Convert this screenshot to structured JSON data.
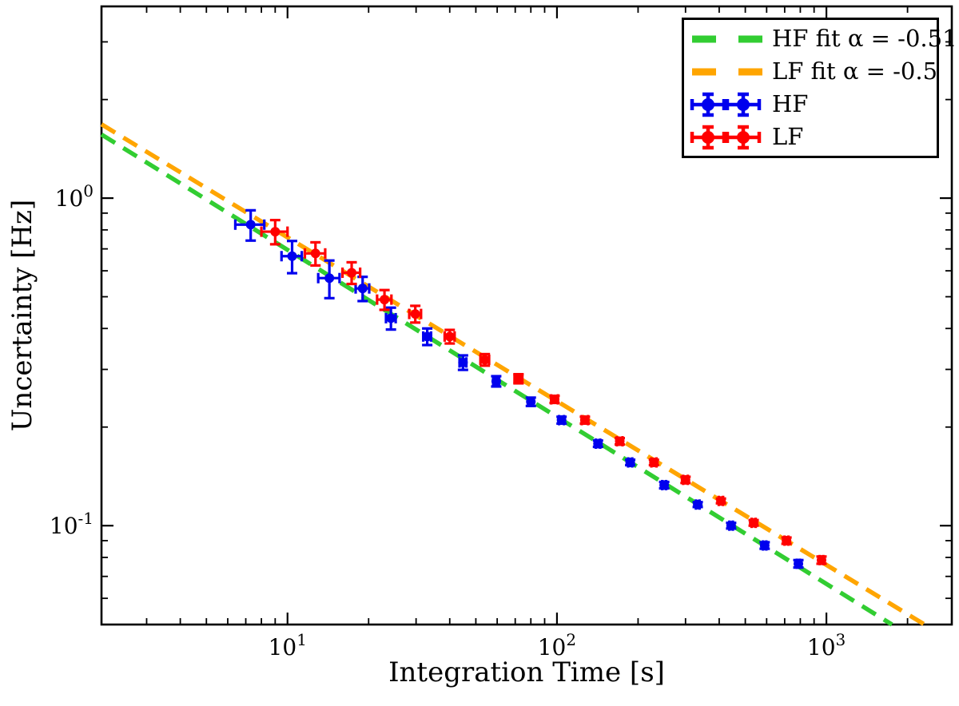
{
  "chart_data": {
    "type": "scatter",
    "title": "",
    "xlabel": "Integration Time [s]",
    "ylabel": "Uncertainty [Hz]",
    "x_scale": "log",
    "y_scale": "log",
    "xlim": [
      2.04,
      2920
    ],
    "ylim": [
      0.0499,
      3.85
    ],
    "x_major_ticks": [
      10,
      100,
      1000
    ],
    "y_major_ticks": [
      1,
      0.1
    ],
    "grid": false,
    "frame_color": "#000000",
    "background_color": "#ffffff",
    "legend_position": "upper right",
    "fits": [
      {
        "name": "HF fit",
        "label": "HF fit α = -0.51",
        "alpha": -0.51,
        "amplitude": 2.25,
        "color": "#32CD32",
        "style": "dashed"
      },
      {
        "name": "LF fit",
        "label": "LF fit α = -0.5",
        "alpha": -0.5,
        "amplitude": 2.4,
        "color": "#FFA500",
        "style": "dashed"
      }
    ],
    "series": [
      {
        "name": "HF",
        "label": "HF",
        "color": "#0000EE",
        "marker": "circle-errorbar",
        "points_format": [
          "t_s",
          "uncertainty_hz",
          "xerr",
          "yerr"
        ],
        "points": [
          [
            7.3,
            0.83,
            0.9,
            0.088
          ],
          [
            10.4,
            0.665,
            0.9,
            0.075
          ],
          [
            14.3,
            0.57,
            1.3,
            0.075
          ],
          [
            19.0,
            0.53,
            1.1,
            0.045
          ],
          [
            24.2,
            0.43,
            1.0,
            0.033
          ],
          [
            33,
            0.378,
            1.1,
            0.022
          ],
          [
            44.8,
            0.315,
            1.3,
            0.016
          ],
          [
            59.5,
            0.276,
            1.5,
            0.01
          ],
          [
            80,
            0.239,
            1.8,
            0.007
          ],
          [
            104,
            0.21,
            2.2,
            0.005
          ],
          [
            142,
            0.178,
            2.7,
            0.004
          ],
          [
            187,
            0.156,
            3.3,
            0.003
          ],
          [
            250,
            0.133,
            4.2,
            0.003
          ],
          [
            333,
            0.116,
            5.2,
            0.002
          ],
          [
            443,
            0.1,
            6.6,
            0.002
          ],
          [
            590,
            0.087,
            8.4,
            0.002
          ],
          [
            787,
            0.0765,
            10.5,
            0.002
          ]
        ]
      },
      {
        "name": "LF",
        "label": "LF",
        "color": "#FF0000",
        "marker": "circle-errorbar",
        "points_format": [
          "t_s",
          "uncertainty_hz",
          "xerr",
          "yerr"
        ],
        "points": [
          [
            9.0,
            0.79,
            1.0,
            0.067
          ],
          [
            12.7,
            0.678,
            1.1,
            0.055
          ],
          [
            17.3,
            0.592,
            1.3,
            0.045
          ],
          [
            22.9,
            0.49,
            1.4,
            0.034
          ],
          [
            29.8,
            0.443,
            1.5,
            0.026
          ],
          [
            40,
            0.378,
            1.7,
            0.018
          ],
          [
            54,
            0.321,
            2.0,
            0.013
          ],
          [
            72,
            0.281,
            2.4,
            0.009
          ],
          [
            98,
            0.243,
            2.8,
            0.006
          ],
          [
            127,
            0.21,
            3.4,
            0.005
          ],
          [
            171,
            0.181,
            4.1,
            0.004
          ],
          [
            229,
            0.156,
            5.0,
            0.003
          ],
          [
            300,
            0.138,
            6.0,
            0.003
          ],
          [
            406,
            0.119,
            7.5,
            0.002
          ],
          [
            537,
            0.102,
            9.5,
            0.002
          ],
          [
            711,
            0.09,
            12,
            0.002
          ],
          [
            959,
            0.0785,
            15,
            0.002
          ]
        ]
      }
    ]
  }
}
